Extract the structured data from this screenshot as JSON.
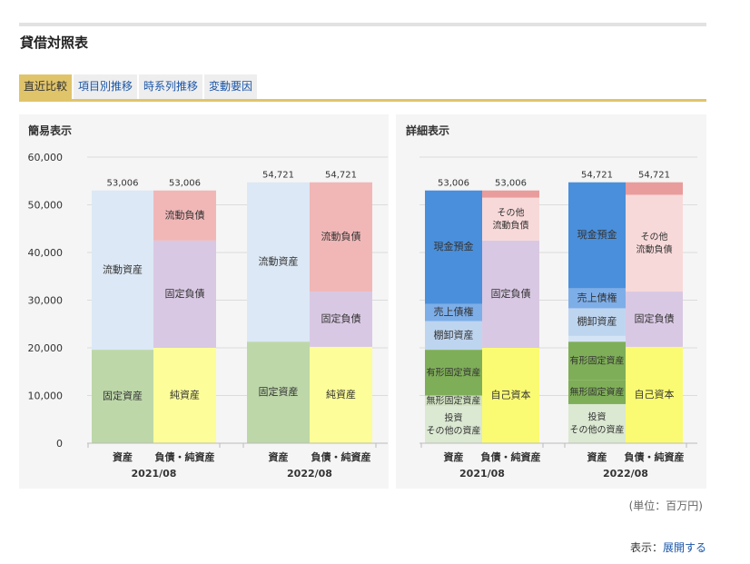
{
  "page_title": "貸借対照表",
  "tabs": [
    {
      "label": "直近比較",
      "active": true
    },
    {
      "label": "項目別推移",
      "active": false
    },
    {
      "label": "時系列推移",
      "active": false
    },
    {
      "label": "変動要因",
      "active": false
    }
  ],
  "unit_note": "(単位：百万円)",
  "footer": {
    "prefix": "表示：",
    "link": "展開する"
  },
  "colors": {
    "accent": "#e0c46a",
    "link": "#1a56a8",
    "panel_bg": "#f5f5f5"
  },
  "chart_data": [
    {
      "type": "bar",
      "stacked": true,
      "title": "簡易表示",
      "ylim": [
        0,
        60000
      ],
      "yticks": [
        0,
        10000,
        20000,
        30000,
        40000,
        50000,
        60000
      ],
      "ytick_labels": [
        "0",
        "10,000",
        "20,000",
        "30,000",
        "40,000",
        "50,000",
        "60,000"
      ],
      "grid": true,
      "groups": [
        {
          "label": "2021/08",
          "bars": [
            {
              "label": "資産",
              "total": 53006,
              "total_label": "53,006",
              "segments": [
                {
                  "name": "固定資産",
                  "value": 19600,
                  "color": "#bdd7a9"
                },
                {
                  "name": "流動資産",
                  "value": 33406,
                  "color": "#dce8f5"
                }
              ]
            },
            {
              "label": "負債・純資産",
              "total": 53006,
              "total_label": "53,006",
              "segments": [
                {
                  "name": "純資産",
                  "value": 20000,
                  "color": "#fdfd99"
                },
                {
                  "name": "固定負債",
                  "value": 22500,
                  "color": "#d9c8e3"
                },
                {
                  "name": "流動負債",
                  "value": 10506,
                  "color": "#f1b7b7"
                }
              ]
            }
          ]
        },
        {
          "label": "2022/08",
          "bars": [
            {
              "label": "資産",
              "total": 54721,
              "total_label": "54,721",
              "segments": [
                {
                  "name": "固定資産",
                  "value": 21300,
                  "color": "#bdd7a9"
                },
                {
                  "name": "流動資産",
                  "value": 33421,
                  "color": "#dce8f5"
                }
              ]
            },
            {
              "label": "負債・純資産",
              "total": 54721,
              "total_label": "54,721",
              "segments": [
                {
                  "name": "純資産",
                  "value": 20200,
                  "color": "#fdfd99"
                },
                {
                  "name": "固定負債",
                  "value": 11600,
                  "color": "#d9c8e3"
                },
                {
                  "name": "流動負債",
                  "value": 22921,
                  "color": "#f1b7b7"
                }
              ]
            }
          ]
        }
      ]
    },
    {
      "type": "bar",
      "stacked": true,
      "title": "詳細表示",
      "ylim": [
        0,
        60000
      ],
      "grid": true,
      "groups": [
        {
          "label": "2021/08",
          "bars": [
            {
              "label": "資産",
              "total": 53006,
              "total_label": "53,006",
              "segments": [
                {
                  "name": "投資\nその他の資産",
                  "value": 7800,
                  "color": "#dbe8d2"
                },
                {
                  "name": "無形固定資産",
                  "value": 2200,
                  "color": "#d2e3c2"
                },
                {
                  "name": "有形固定資産",
                  "value": 9600,
                  "color": "#7fae58"
                },
                {
                  "name": "棚卸資産",
                  "value": 6000,
                  "color": "#bed5f0"
                },
                {
                  "name": "売上債権",
                  "value": 3600,
                  "color": "#7eaee8"
                },
                {
                  "name": "現金預金",
                  "value": 23806,
                  "color": "#4a8fdb"
                }
              ]
            },
            {
              "label": "負債・純資産",
              "total": 53006,
              "total_label": "53,006",
              "segments": [
                {
                  "name": "自己資本",
                  "value": 20000,
                  "color": "#fbfb73"
                },
                {
                  "name": "固定負債",
                  "value": 22500,
                  "color": "#d9c8e3"
                },
                {
                  "name": "その他\n流動負債",
                  "value": 9000,
                  "color": "#f8d9d9"
                },
                {
                  "name": "",
                  "value": 1506,
                  "color": "#e99c9c"
                }
              ]
            }
          ]
        },
        {
          "label": "2022/08",
          "bars": [
            {
              "label": "資産",
              "total": 54721,
              "total_label": "54,721",
              "segments": [
                {
                  "name": "投資\nその他の資産",
                  "value": 8200,
                  "color": "#dbe8d2"
                },
                {
                  "name": "無形固定資産",
                  "value": 5000,
                  "color": "#7fae58"
                },
                {
                  "name": "有形固定資産",
                  "value": 8100,
                  "color": "#7fae58"
                },
                {
                  "name": "",
                  "value": 1200,
                  "color": "#d4e4f5"
                },
                {
                  "name": "棚卸資産",
                  "value": 5800,
                  "color": "#bed5f0"
                },
                {
                  "name": "売上債権",
                  "value": 4200,
                  "color": "#7eaee8"
                },
                {
                  "name": "現金預金",
                  "value": 22221,
                  "color": "#4a8fdb"
                }
              ]
            },
            {
              "label": "負債・純資産",
              "total": 54721,
              "total_label": "54,721",
              "segments": [
                {
                  "name": "自己資本",
                  "value": 20200,
                  "color": "#fbfb73"
                },
                {
                  "name": "固定負債",
                  "value": 11600,
                  "color": "#d9c8e3"
                },
                {
                  "name": "その他\n流動負債",
                  "value": 20300,
                  "color": "#f8d9d9"
                },
                {
                  "name": "",
                  "value": 2621,
                  "color": "#e99c9c"
                }
              ]
            }
          ]
        }
      ]
    }
  ]
}
